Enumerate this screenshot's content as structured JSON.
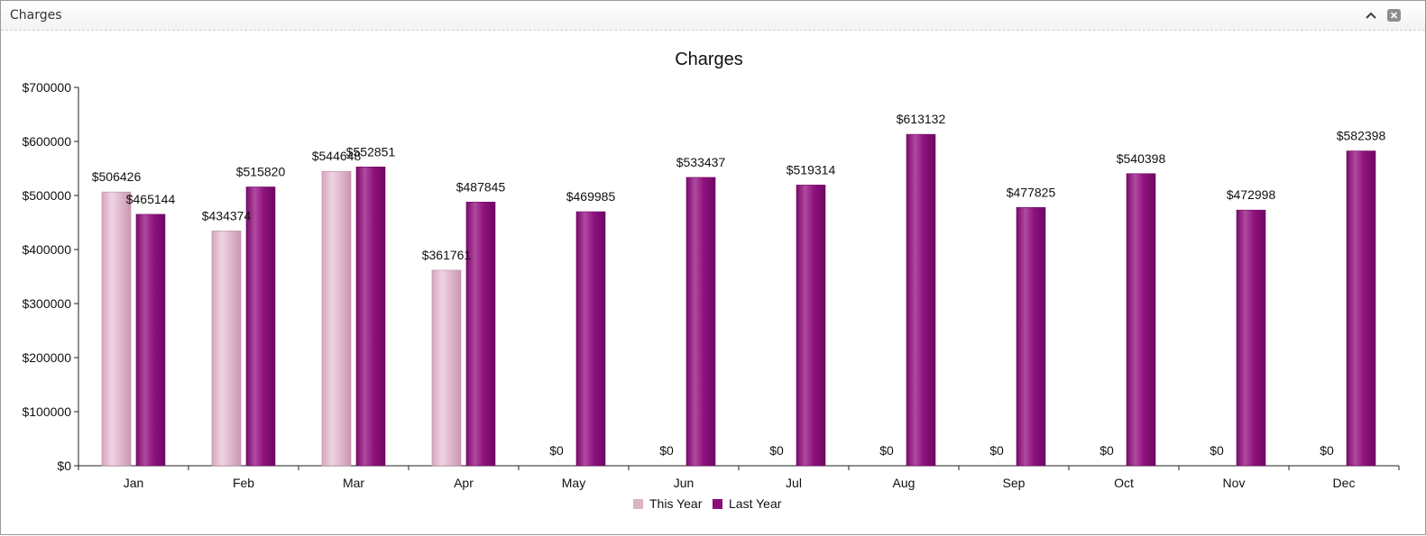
{
  "window": {
    "title": "Charges",
    "collapse_icon": "chevron-up-icon",
    "close_icon": "close-icon"
  },
  "colors": {
    "this_year": "#dcb2c8",
    "last_year": "#8b0d7b"
  },
  "chart_data": {
    "type": "bar",
    "title": "Charges",
    "xlabel": "",
    "ylabel": "",
    "categories": [
      "Jan",
      "Feb",
      "Mar",
      "Apr",
      "May",
      "Jun",
      "Jul",
      "Aug",
      "Sep",
      "Oct",
      "Nov",
      "Dec"
    ],
    "series": [
      {
        "name": "This Year",
        "values": [
          506426,
          434374,
          544648,
          361761,
          0,
          0,
          0,
          0,
          0,
          0,
          0,
          0
        ]
      },
      {
        "name": "Last Year",
        "values": [
          465144,
          515820,
          552851,
          487845,
          469985,
          533437,
          519314,
          613132,
          477825,
          540398,
          472998,
          582398
        ]
      }
    ],
    "ylim": [
      0,
      700000
    ],
    "yticks": [
      "$0",
      "$100000",
      "$200000",
      "$300000",
      "$400000",
      "$500000",
      "$600000",
      "$700000"
    ],
    "value_labels": [
      [
        "$506426",
        "$434374",
        "$544648",
        "$361761",
        "$0",
        "$0",
        "$0",
        "$0",
        "$0",
        "$0",
        "$0",
        "$0"
      ],
      [
        "$465144",
        "$515820",
        "$552851",
        "$487845",
        "$469985",
        "$533437",
        "$519314",
        "$613132",
        "$477825",
        "$540398",
        "$472998",
        "$582398"
      ]
    ],
    "legend_position": "bottom-center",
    "grid": false
  }
}
